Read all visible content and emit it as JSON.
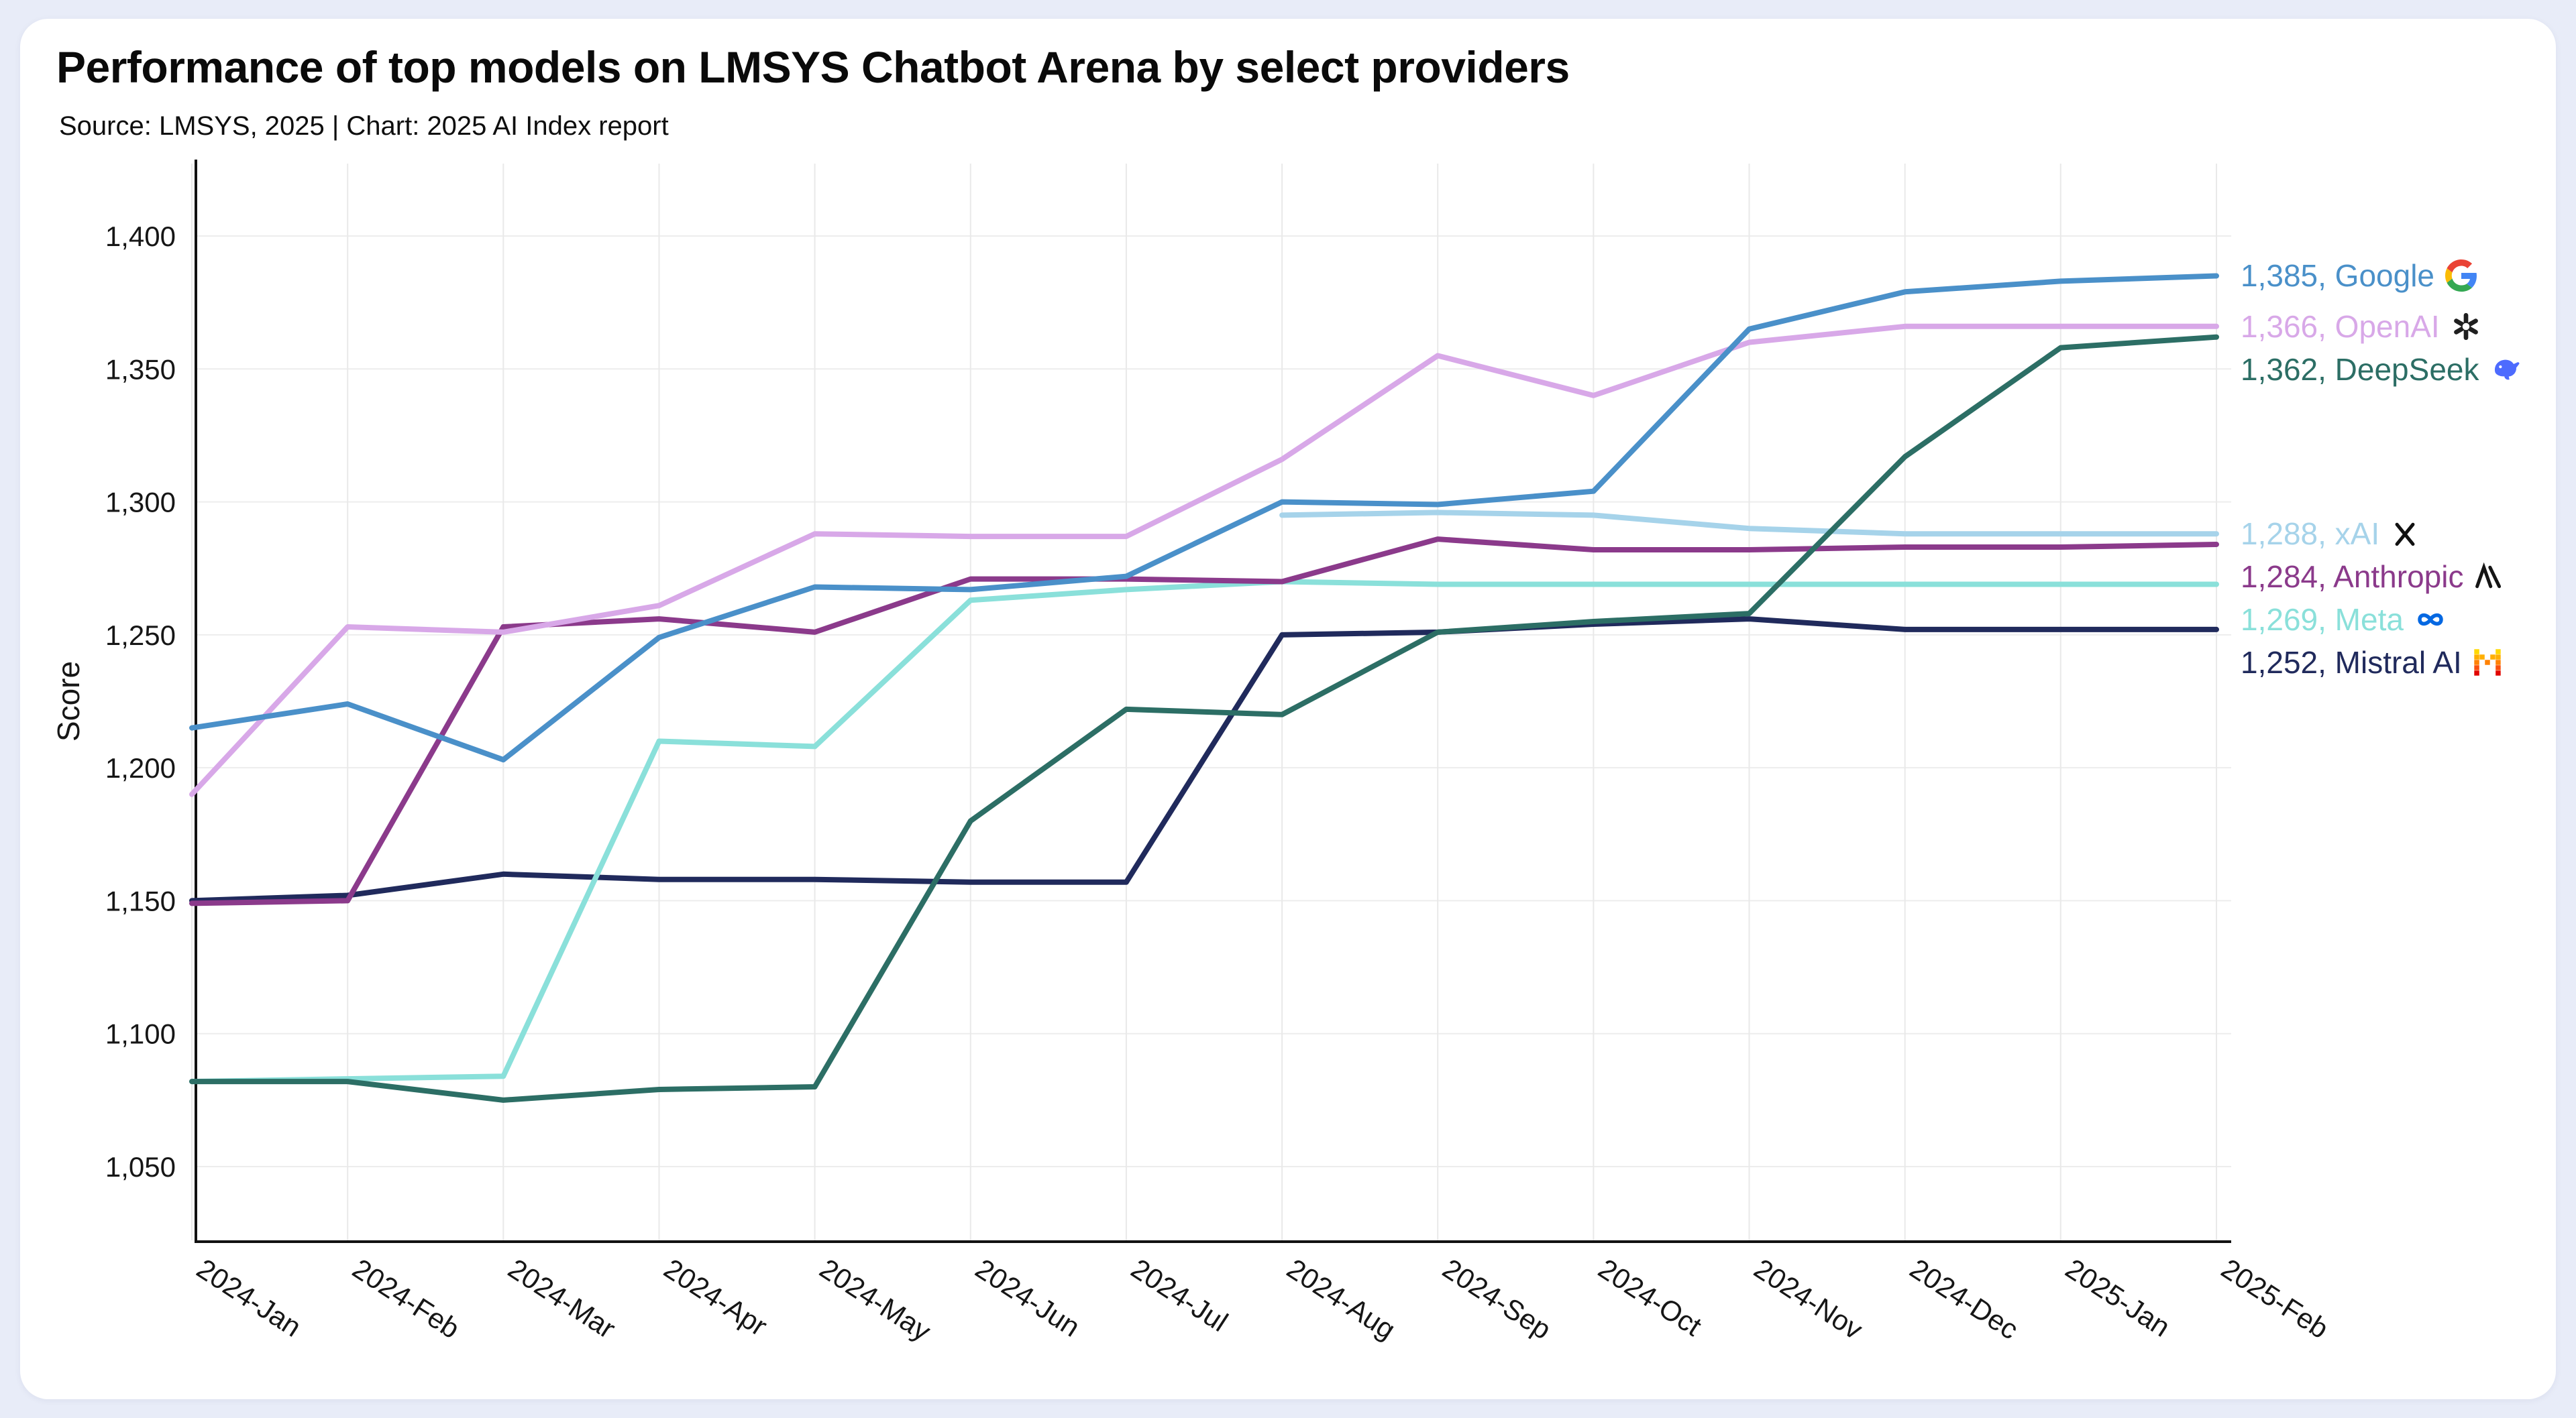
{
  "page": {
    "background_color": "#e8ecf8",
    "card_color": "#ffffff"
  },
  "header": {
    "title": "Performance of top models on LMSYS Chatbot Arena by select providers",
    "subtitle": "Source: LMSYS, 2025 | Chart: 2025 AI Index report"
  },
  "chart_data": {
    "type": "line",
    "title": "Performance of top models on LMSYS Chatbot Arena by select providers",
    "xlabel": "",
    "ylabel": "Score",
    "ylim": [
      1050,
      1400
    ],
    "yticks": [
      1050,
      1100,
      1150,
      1200,
      1250,
      1300,
      1350,
      1400
    ],
    "grid": true,
    "legend_position": "right-end-labels",
    "categories": [
      "2024-Jan",
      "2024-Feb",
      "2024-Mar",
      "2024-Apr",
      "2024-May",
      "2024-Jun",
      "2024-Jul",
      "2024-Aug",
      "2024-Sep",
      "2024-Oct",
      "2024-Nov",
      "2024-Dec",
      "2025-Jan",
      "2025-Feb"
    ],
    "series": [
      {
        "name": "Google",
        "color": "#4a90c9",
        "icon": "google-g-icon",
        "end_value": 1385,
        "end_label": "1,385, Google",
        "values": [
          1215,
          1224,
          1203,
          1249,
          1268,
          1267,
          1272,
          1300,
          1299,
          1304,
          1365,
          1379,
          1383,
          1385
        ]
      },
      {
        "name": "OpenAI",
        "color": "#d8a8e8",
        "icon": "openai-icon",
        "end_value": 1366,
        "end_label": "1,366, OpenAI",
        "values": [
          1190,
          1253,
          1251,
          1261,
          1288,
          1287,
          1287,
          1316,
          1355,
          1340,
          1360,
          1366,
          1366,
          1366
        ]
      },
      {
        "name": "DeepSeek",
        "color": "#2c6e65",
        "icon": "deepseek-icon",
        "end_value": 1362,
        "end_label": "1,362, DeepSeek",
        "values": [
          1082,
          1082,
          1075,
          1079,
          1080,
          1180,
          1222,
          1220,
          1251,
          1255,
          1258,
          1317,
          1358,
          1362
        ]
      },
      {
        "name": "xAI",
        "color": "#a6d3ea",
        "icon": "xai-icon",
        "end_value": 1288,
        "end_label": "1,288, xAI",
        "values": [
          null,
          null,
          null,
          null,
          null,
          null,
          null,
          1295,
          1296,
          1295,
          1290,
          1288,
          1288,
          1288
        ]
      },
      {
        "name": "Anthropic",
        "color": "#8b3a8b",
        "icon": "anthropic-icon",
        "end_value": 1284,
        "end_label": "1,284, Anthropic",
        "values": [
          1149,
          1150,
          1253,
          1256,
          1251,
          1271,
          1271,
          1270,
          1286,
          1282,
          1282,
          1283,
          1283,
          1284
        ]
      },
      {
        "name": "Meta",
        "color": "#8ae0da",
        "icon": "meta-icon",
        "end_value": 1269,
        "end_label": "1,269, Meta",
        "values": [
          1082,
          1083,
          1084,
          1210,
          1208,
          1263,
          1267,
          1270,
          1269,
          1269,
          1269,
          1269,
          1269,
          1269
        ]
      },
      {
        "name": "Mistral AI",
        "color": "#202a5c",
        "icon": "mistral-icon",
        "end_value": 1252,
        "end_label": "1,252, Mistral AI",
        "values": [
          1150,
          1152,
          1160,
          1158,
          1158,
          1157,
          1157,
          1250,
          1251,
          1254,
          1256,
          1252,
          1252,
          1252
        ]
      }
    ]
  }
}
